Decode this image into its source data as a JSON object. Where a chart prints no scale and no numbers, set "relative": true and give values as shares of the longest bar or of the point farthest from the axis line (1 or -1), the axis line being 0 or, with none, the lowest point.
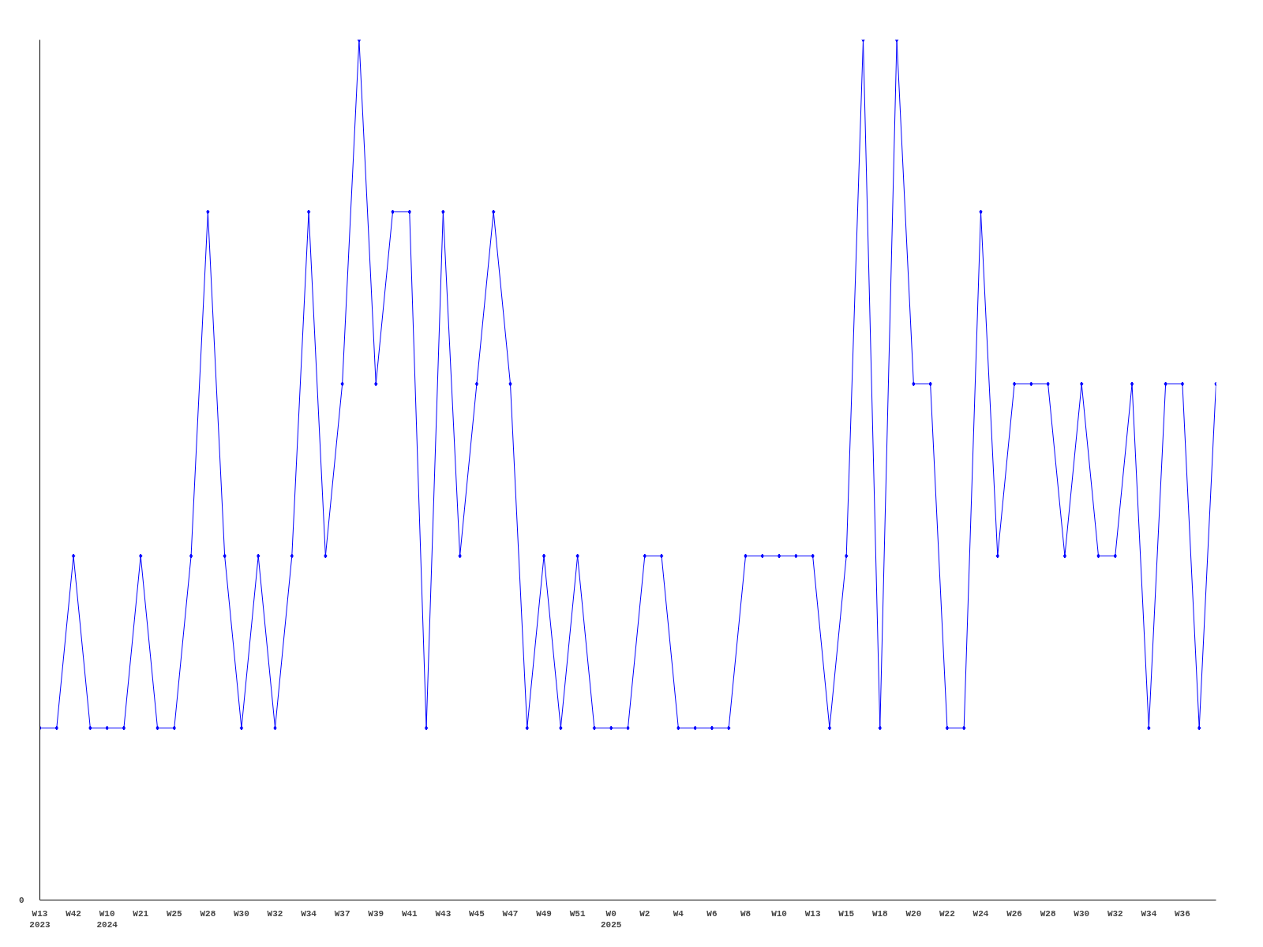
{
  "chart_data": {
    "type": "line",
    "relative": true,
    "categories": [
      "W13\n2023",
      null,
      "W42",
      null,
      "W10\n2024",
      null,
      "W21",
      null,
      "W25",
      null,
      "W28",
      null,
      "W30",
      null,
      "W32",
      null,
      "W34",
      null,
      "W37",
      null,
      "W39",
      null,
      "W41",
      null,
      "W43",
      null,
      "W45",
      null,
      "W47",
      null,
      "W49",
      null,
      "W51",
      null,
      "W0\n2025",
      null,
      "W2",
      null,
      "W4",
      null,
      "W6",
      null,
      "W8",
      null,
      "W10",
      null,
      "W13",
      null,
      "W15",
      null,
      "W18",
      null,
      "W20",
      null,
      "W22",
      null,
      "W24",
      null,
      "W26",
      null,
      "W28",
      null,
      "W30",
      null,
      "W32",
      null,
      "W34",
      null,
      "W36",
      null,
      null
    ],
    "series": [
      {
        "color": "#0000ff",
        "values": [
          0.2,
          0.2,
          0.4,
          0.2,
          0.2,
          0.2,
          0.4,
          0.2,
          0.2,
          0.4,
          0.8,
          0.4,
          0.2,
          0.4,
          0.2,
          0.4,
          0.8,
          0.4,
          0.6,
          1.0,
          0.6,
          0.8,
          0.8,
          0.2,
          0.8,
          0.4,
          0.6,
          0.8,
          0.6,
          0.2,
          0.4,
          0.2,
          0.4,
          0.2,
          0.2,
          0.2,
          0.4,
          0.4,
          0.2,
          0.2,
          0.2,
          0.2,
          0.4,
          0.4,
          0.4,
          0.4,
          0.4,
          0.2,
          0.4,
          1.0,
          0.2,
          1.0,
          0.6,
          0.6,
          0.2,
          0.2,
          0.8,
          0.4,
          0.6,
          0.6,
          0.6,
          0.4,
          0.6,
          0.4,
          0.4,
          0.6,
          0.2,
          0.6,
          0.6,
          0.2,
          0.6
        ]
      }
    ],
    "annotations": [
      "0"
    ],
    "marker": "diamond",
    "line_style": "solid",
    "grid": false
  }
}
